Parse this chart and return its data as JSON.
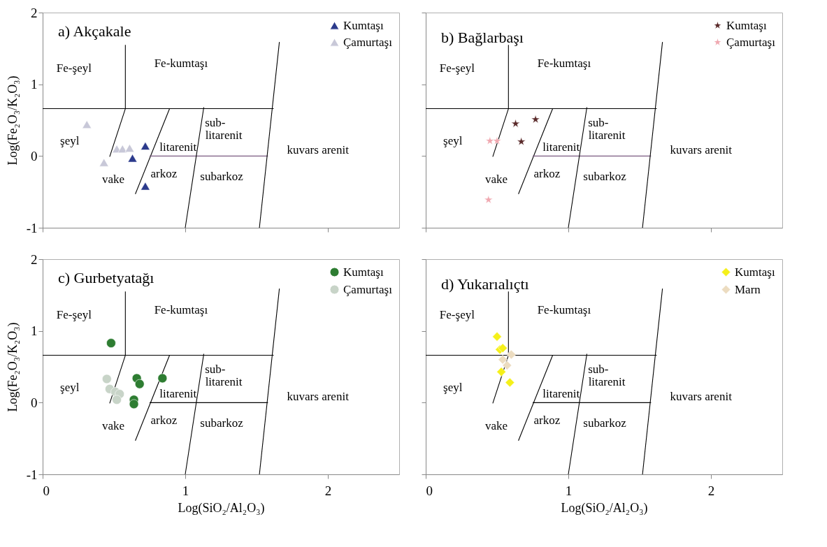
{
  "chart_data": [
    {
      "type": "scatter",
      "title": "a) Akçakale",
      "ylabel": "Log(Fe₂O₃/K₂O₃)",
      "xlim": [
        0,
        2.5
      ],
      "ylim": [
        -1,
        2
      ],
      "xticks": [
        0,
        1,
        2
      ],
      "yticks": [
        -1,
        0,
        1,
        2
      ],
      "tick_labels": "y",
      "legend": "top right",
      "grid": false,
      "series": [
        {
          "type": "line",
          "color": "#000000",
          "x": [
            0,
            1.62
          ],
          "values": [
            0.66,
            0.66
          ]
        },
        {
          "type": "line",
          "color": "#000000",
          "x": [
            0.47,
            0.58,
            0.58
          ],
          "values": [
            -0.01,
            0.66,
            1.55
          ]
        },
        {
          "type": "line",
          "color": "#000000",
          "x": [
            0.65,
            0.89
          ],
          "values": [
            -0.53,
            0.66
          ]
        },
        {
          "type": "line",
          "color": "#7a5a80",
          "x": [
            0.75,
            1.58
          ],
          "values": [
            0,
            0
          ]
        },
        {
          "type": "line",
          "color": "#000000",
          "x": [
            1.0,
            1.13
          ],
          "values": [
            -1,
            0.68
          ]
        },
        {
          "type": "line",
          "color": "#000000",
          "x": [
            1.52,
            1.66
          ],
          "values": [
            -1,
            1.59
          ]
        },
        {
          "type": "scatter",
          "name": "Kumtaşı",
          "color": "#2b3a8c",
          "marker": "triangle",
          "x": [
            0.72,
            0.63,
            0.72
          ],
          "values": [
            0.14,
            -0.03,
            -0.42
          ]
        },
        {
          "type": "scatter",
          "name": "Çamurtaşı",
          "color": "#c8c8d8",
          "marker": "triangle",
          "x": [
            0.31,
            0.43,
            0.52,
            0.56,
            0.61
          ],
          "values": [
            0.44,
            -0.09,
            0.1,
            0.1,
            0.11
          ]
        }
      ],
      "annotations": [
        "Fe-şeyl",
        "Fe-kumtaşı",
        "şeyl",
        "sub-",
        "litarenit",
        "litarenit",
        "kuvars arenit",
        "vake",
        "arkoz",
        "subarkoz"
      ]
    },
    {
      "type": "scatter",
      "title": "b) Bağlarbaşı",
      "xlim": [
        0,
        2.5
      ],
      "ylim": [
        -1,
        2
      ],
      "xticks": [
        0,
        1,
        2
      ],
      "yticks": [
        -1,
        0,
        1,
        2
      ],
      "tick_labels": false,
      "legend": "top right",
      "grid": false,
      "series": [
        {
          "type": "line",
          "color": "#000000",
          "x": [
            0,
            1.62
          ],
          "values": [
            0.66,
            0.66
          ]
        },
        {
          "type": "line",
          "color": "#000000",
          "x": [
            0.47,
            0.58,
            0.58
          ],
          "values": [
            -0.01,
            0.66,
            1.55
          ]
        },
        {
          "type": "line",
          "color": "#000000",
          "x": [
            0.65,
            0.89
          ],
          "values": [
            -0.53,
            0.66
          ]
        },
        {
          "type": "line",
          "color": "#7a5a80",
          "x": [
            0.75,
            1.58
          ],
          "values": [
            0,
            0
          ]
        },
        {
          "type": "line",
          "color": "#000000",
          "x": [
            1.0,
            1.13
          ],
          "values": [
            -1,
            0.68
          ]
        },
        {
          "type": "line",
          "color": "#000000",
          "x": [
            1.52,
            1.66
          ],
          "values": [
            -1,
            1.59
          ]
        },
        {
          "type": "scatter",
          "name": "Kumtaşı",
          "color": "#5a2a2a",
          "marker": "star",
          "x": [
            0.63,
            0.77,
            0.67
          ],
          "values": [
            0.45,
            0.51,
            0.2
          ]
        },
        {
          "type": "scatter",
          "name": "Çamurtaşı",
          "color": "#f0a8b0",
          "marker": "star",
          "x": [
            0.45,
            0.5,
            0.44
          ],
          "values": [
            0.21,
            0.21,
            -0.61
          ]
        }
      ],
      "annotations": [
        "Fe-şeyl",
        "Fe-kumtaşı",
        "şeyl",
        "sub-",
        "litarenit",
        "litarenit",
        "kuvars arenit",
        "vake",
        "arkoz",
        "subarkoz"
      ]
    },
    {
      "type": "scatter",
      "title": "c) Gurbetyatağı",
      "xlabel": "Log(SiO₂/Al₂O₃)",
      "ylabel": "Log(Fe₂O₃/K₂O₃)",
      "xlim": [
        0,
        2.5
      ],
      "ylim": [
        -1,
        2
      ],
      "xticks": [
        0,
        1,
        2
      ],
      "yticks": [
        -1,
        0,
        1,
        2
      ],
      "legend": "top right",
      "grid": false,
      "series": [
        {
          "type": "line",
          "color": "#000000",
          "x": [
            0,
            1.62
          ],
          "values": [
            0.66,
            0.66
          ]
        },
        {
          "type": "line",
          "color": "#000000",
          "x": [
            0.47,
            0.58,
            0.58
          ],
          "values": [
            -0.01,
            0.66,
            1.55
          ]
        },
        {
          "type": "line",
          "color": "#000000",
          "x": [
            0.65,
            0.89
          ],
          "values": [
            -0.53,
            0.66
          ]
        },
        {
          "type": "line",
          "color": "#000000",
          "x": [
            0.75,
            1.58
          ],
          "values": [
            0,
            0
          ]
        },
        {
          "type": "line",
          "color": "#000000",
          "x": [
            1.0,
            1.13
          ],
          "values": [
            -1,
            0.68
          ]
        },
        {
          "type": "line",
          "color": "#000000",
          "x": [
            1.52,
            1.66
          ],
          "values": [
            -1,
            1.59
          ]
        },
        {
          "type": "scatter",
          "name": "Kumtaşı",
          "color": "#2e7d32",
          "marker": "circle",
          "x": [
            0.48,
            0.66,
            0.68,
            0.84,
            0.64,
            0.64
          ],
          "values": [
            0.83,
            0.34,
            0.26,
            0.34,
            0.04,
            -0.02
          ]
        },
        {
          "type": "scatter",
          "name": "Çamurtaşı",
          "color": "#c8d4c8",
          "marker": "circle",
          "x": [
            0.45,
            0.47,
            0.51,
            0.54,
            0.52
          ],
          "values": [
            0.33,
            0.19,
            0.15,
            0.12,
            0.04
          ]
        }
      ],
      "annotations": [
        "Fe-şeyl",
        "Fe-kumtaşı",
        "şeyl",
        "sub-",
        "litarenit",
        "litarenit",
        "kuvars arenit",
        "vake",
        "arkoz",
        "subarkoz"
      ]
    },
    {
      "type": "scatter",
      "title": "d) Yukarıalıçtı",
      "xlabel": "Log(SiO₂/Al₂O₃)",
      "xlim": [
        0,
        2.5
      ],
      "ylim": [
        -1,
        2
      ],
      "xticks": [
        0,
        1,
        2
      ],
      "yticks": [
        -1,
        0,
        1,
        2
      ],
      "tick_labels": "x",
      "legend": "top right",
      "grid": false,
      "series": [
        {
          "type": "line",
          "color": "#000000",
          "x": [
            0,
            1.62
          ],
          "values": [
            0.66,
            0.66
          ]
        },
        {
          "type": "line",
          "color": "#000000",
          "x": [
            0.47,
            0.58,
            0.58
          ],
          "values": [
            -0.01,
            0.66,
            1.55
          ]
        },
        {
          "type": "line",
          "color": "#000000",
          "x": [
            0.65,
            0.89
          ],
          "values": [
            -0.53,
            0.66
          ]
        },
        {
          "type": "line",
          "color": "#000000",
          "x": [
            0.75,
            1.58
          ],
          "values": [
            0,
            0
          ]
        },
        {
          "type": "line",
          "color": "#000000",
          "x": [
            1.0,
            1.13
          ],
          "values": [
            -1,
            0.68
          ]
        },
        {
          "type": "line",
          "color": "#000000",
          "x": [
            1.52,
            1.66
          ],
          "values": [
            -1,
            1.59
          ]
        },
        {
          "type": "scatter",
          "name": "Kumtaşı",
          "color": "#f5f01a",
          "marker": "diamond",
          "x": [
            0.5,
            0.52,
            0.54,
            0.53,
            0.59
          ],
          "values": [
            0.92,
            0.74,
            0.76,
            0.43,
            0.28
          ]
        },
        {
          "type": "scatter",
          "name": "Marn",
          "color": "#ecdcc0",
          "marker": "diamond",
          "x": [
            0.6,
            0.54,
            0.57
          ],
          "values": [
            0.67,
            0.6,
            0.52
          ]
        }
      ],
      "annotations": [
        "Fe-şeyl",
        "Fe-kumtaşı",
        "şeyl",
        "sub-",
        "litarenit",
        "litarenit",
        "kuvars arenit",
        "vake",
        "arkoz",
        "subarkoz"
      ]
    }
  ]
}
